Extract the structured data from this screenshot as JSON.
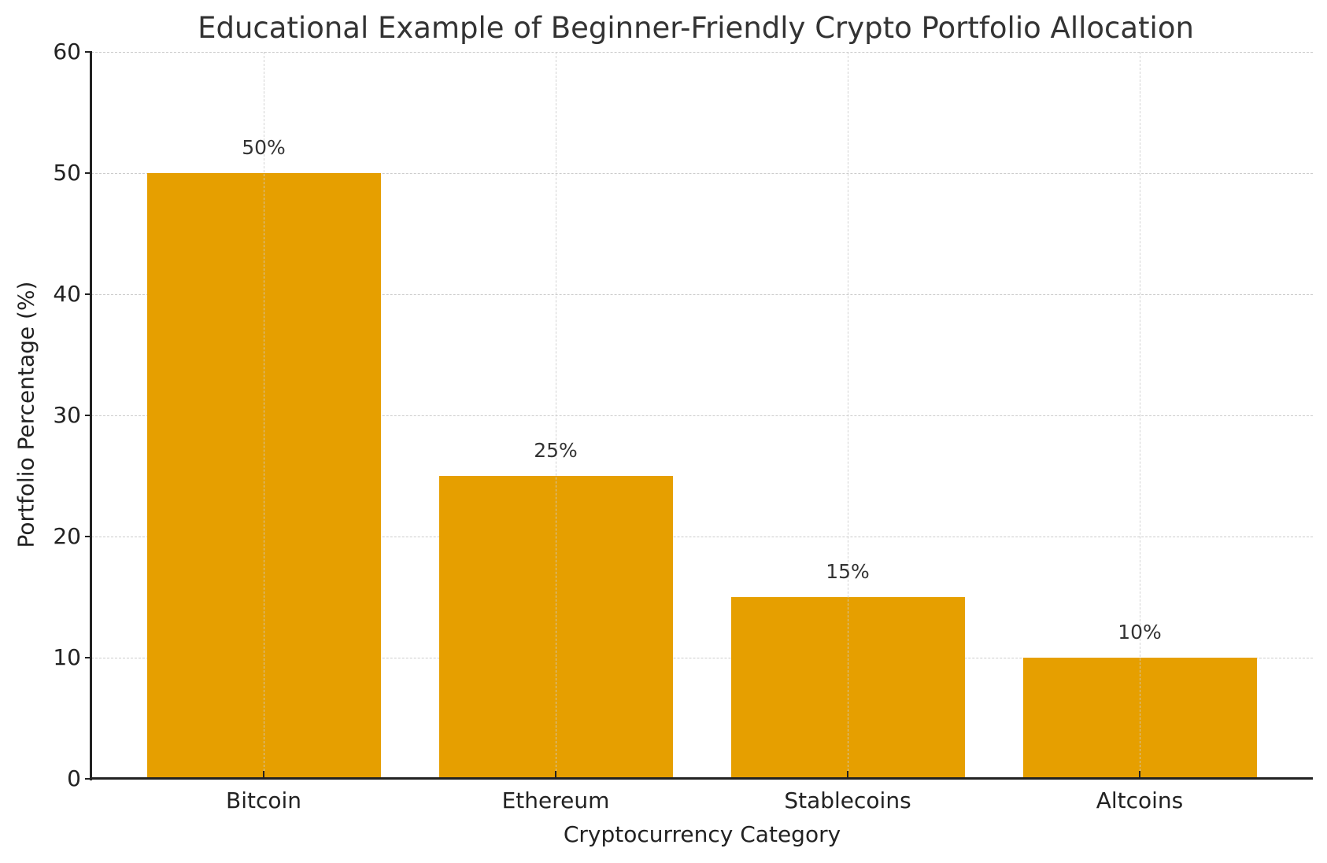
{
  "chart_data": {
    "type": "bar",
    "title": "Educational Example of Beginner-Friendly Crypto Portfolio Allocation",
    "xlabel": "Cryptocurrency Category",
    "ylabel": "Portfolio Percentage (%)",
    "categories": [
      "Bitcoin",
      "Ethereum",
      "Stablecoins",
      "Altcoins"
    ],
    "values": [
      50,
      25,
      15,
      10
    ],
    "value_labels": [
      "50%",
      "25%",
      "15%",
      "10%"
    ],
    "ylim": [
      0,
      60
    ],
    "yticks": [
      0,
      10,
      20,
      30,
      40,
      50,
      60
    ],
    "grid": true,
    "legend": null,
    "bar_color": "#E69F00"
  }
}
